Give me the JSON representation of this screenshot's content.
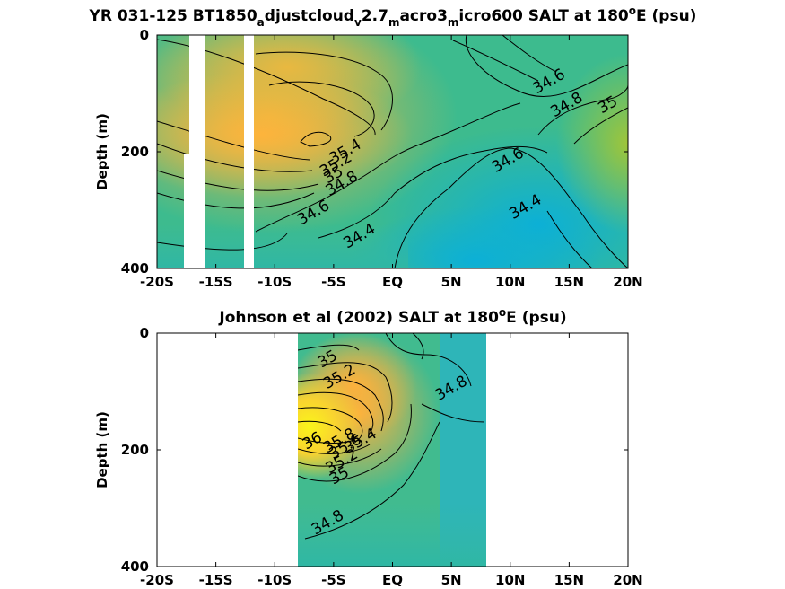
{
  "chart_data": [
    {
      "type": "heatmap",
      "title": "YR 031-125 BT1850_adjustcloud_v2.7_macro3_micro600 SALT at 180°E (psu)",
      "title_parts": [
        "YR 031-125 BT1850",
        "a",
        "djustcloud",
        "v",
        "2.7",
        "m",
        "acro3",
        "m",
        "icro600 SALT at 180",
        "o",
        "E (psu)"
      ],
      "xlabel": "",
      "ylabel": "Depth (m)",
      "xlim": [
        -20,
        20
      ],
      "ylim": [
        400,
        0
      ],
      "x_ticks": [
        -20,
        -15,
        -10,
        -5,
        0,
        5,
        10,
        15,
        20
      ],
      "x_tick_labels": [
        "-20S",
        "-15S",
        "-10S",
        "-5S",
        "EQ",
        "5N",
        "10N",
        "15N",
        "20N"
      ],
      "y_ticks": [
        0,
        200,
        400
      ],
      "y_tick_labels": [
        "0",
        "200",
        "400"
      ],
      "grid": false,
      "colormap": "parula",
      "no_data_bands_lat": [
        [
          -17.5,
          -16.8
        ],
        [
          -12.7,
          -12.3
        ]
      ],
      "contour_labels": [
        {
          "text": "34.6",
          "lat": 13.3,
          "depth": 80
        },
        {
          "text": "34.8",
          "lat": 14.8,
          "depth": 120
        },
        {
          "text": "35",
          "lat": 18.3,
          "depth": 120
        },
        {
          "text": "35.4",
          "lat": -4.0,
          "depth": 200
        },
        {
          "text": "35.2",
          "lat": -4.8,
          "depth": 222
        },
        {
          "text": "35",
          "lat": -5.0,
          "depth": 240
        },
        {
          "text": "34.8",
          "lat": -4.3,
          "depth": 255
        },
        {
          "text": "34.6",
          "lat": -6.7,
          "depth": 305
        },
        {
          "text": "34.6",
          "lat": 9.8,
          "depth": 215
        },
        {
          "text": "34.4",
          "lat": 11.3,
          "depth": 295
        },
        {
          "text": "34.4",
          "lat": -2.8,
          "depth": 345
        }
      ]
    },
    {
      "type": "heatmap",
      "title": "Johnson et al (2002) SALT at 180°E (psu)",
      "title_parts": [
        "Johnson et al (2002) SALT at 180",
        "o",
        "E (psu)"
      ],
      "xlabel": "",
      "ylabel": "Depth (m)",
      "xlim": [
        -20,
        20
      ],
      "ylim": [
        400,
        0
      ],
      "x_ticks": [
        -20,
        -15,
        -10,
        -5,
        0,
        5,
        10,
        15,
        20
      ],
      "x_tick_labels": [
        "-20S",
        "-15S",
        "-10S",
        "-5S",
        "EQ",
        "5N",
        "10N",
        "15N",
        "20N"
      ],
      "y_ticks": [
        0,
        200,
        400
      ],
      "y_tick_labels": [
        "0",
        "200",
        "400"
      ],
      "grid": false,
      "colormap": "parula",
      "data_lat_range": [
        -8,
        8
      ],
      "contour_labels": [
        {
          "text": "35",
          "lat": -5.5,
          "depth": 45
        },
        {
          "text": "35.2",
          "lat": -4.5,
          "depth": 75
        },
        {
          "text": "34.8",
          "lat": 5.0,
          "depth": 95
        },
        {
          "text": "36",
          "lat": -6.8,
          "depth": 185
        },
        {
          "text": "35.8",
          "lat": -4.5,
          "depth": 185
        },
        {
          "text": "35.6",
          "lat": -4.0,
          "depth": 195
        },
        {
          "text": "35.4",
          "lat": -2.7,
          "depth": 185
        },
        {
          "text": "35.2",
          "lat": -4.3,
          "depth": 220
        },
        {
          "text": "35",
          "lat": -4.5,
          "depth": 245
        },
        {
          "text": "34.8",
          "lat": -5.5,
          "depth": 325
        }
      ]
    }
  ]
}
